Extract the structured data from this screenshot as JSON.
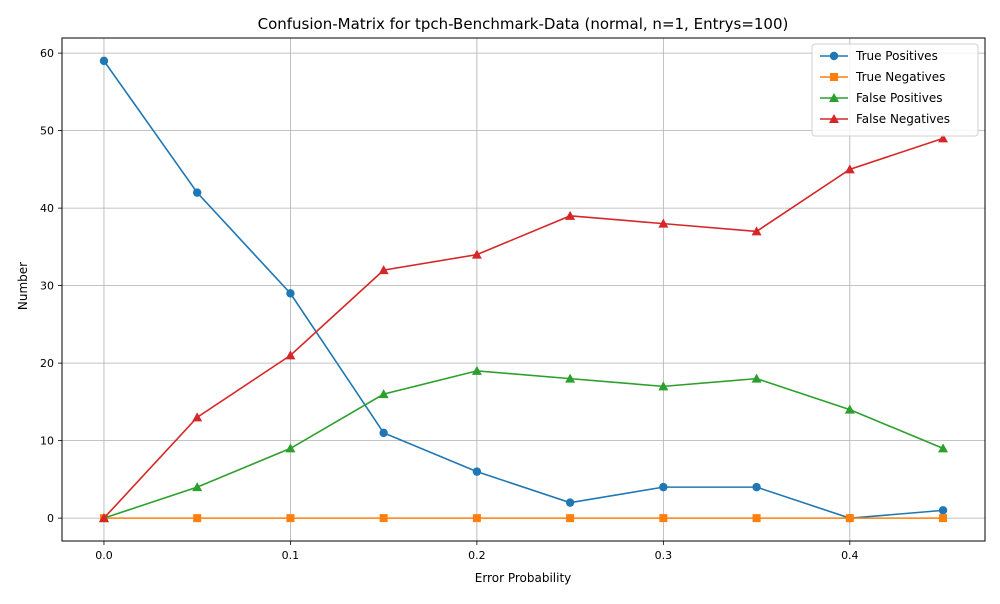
{
  "chart_data": {
    "type": "line",
    "title": "Confusion-Matrix for tpch-Benchmark-Data (normal, n=1, Entrys=100)",
    "xlabel": "Error Probability",
    "ylabel": "Number",
    "x": [
      0.0,
      0.05,
      0.1,
      0.15,
      0.2,
      0.25,
      0.3,
      0.35,
      0.4,
      0.45
    ],
    "xlim": [
      -0.0225,
      0.4725
    ],
    "ylim": [
      -2.95,
      61.95
    ],
    "xticks": [
      0.0,
      0.1,
      0.2,
      0.3,
      0.4
    ],
    "xtick_labels": [
      "0.0",
      "0.1",
      "0.2",
      "0.3",
      "0.4"
    ],
    "yticks": [
      0,
      10,
      20,
      30,
      40,
      50,
      60
    ],
    "ytick_labels": [
      "0",
      "10",
      "20",
      "30",
      "40",
      "50",
      "60"
    ],
    "grid": true,
    "legend_position": "top-right",
    "series": [
      {
        "name": "True Positives",
        "color": "#1f77b4",
        "marker": "circle",
        "values": [
          59,
          42,
          29,
          11,
          6,
          2,
          4,
          4,
          0,
          1
        ]
      },
      {
        "name": "True Negatives",
        "color": "#ff7f0e",
        "marker": "square",
        "values": [
          0,
          0,
          0,
          0,
          0,
          0,
          0,
          0,
          0,
          0
        ]
      },
      {
        "name": "False Positives",
        "color": "#2ca02c",
        "marker": "triangle",
        "values": [
          0,
          4,
          9,
          16,
          19,
          18,
          17,
          18,
          14,
          9
        ]
      },
      {
        "name": "False Negatives",
        "color": "#d62728",
        "marker": "triangle",
        "values": [
          0,
          13,
          21,
          32,
          34,
          39,
          38,
          37,
          45,
          49
        ]
      }
    ]
  }
}
